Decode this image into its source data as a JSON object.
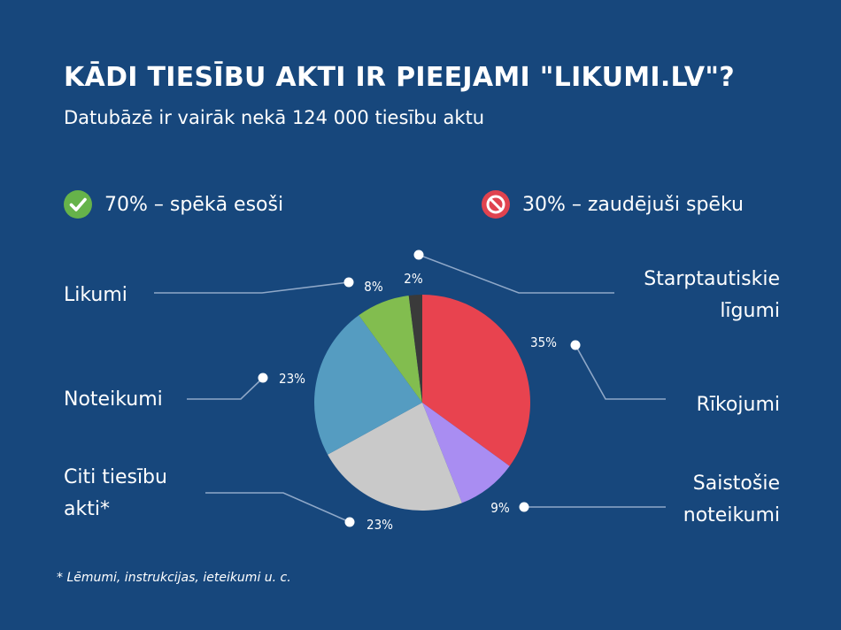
{
  "header": {
    "title": "KĀDI TIESĪBU AKTI IR PIEEJAMI \"LIKUMI.LV\"?",
    "subtitle": "Datubāzē ir vairāk nekā 124 000 tiesību aktu"
  },
  "status": {
    "active": {
      "label": "70% – spēkā esoši",
      "icon": "check-circle-icon",
      "color": "#66b34a"
    },
    "lost": {
      "label": "30% – zaudējuši spēku",
      "icon": "no-entry-icon",
      "color": "#e0434f"
    }
  },
  "footnote": "* Lēmumi, instrukcijas, ieteikumi u. c.",
  "chart_data": {
    "type": "pie",
    "slices": [
      {
        "label": [
          "Rīkojumi"
        ],
        "value": 35,
        "value_label": "35%",
        "color": "#e8434f"
      },
      {
        "label": [
          "Saistošie",
          "noteikumi"
        ],
        "value": 9,
        "value_label": "9%",
        "color": "#a98df2"
      },
      {
        "label": [
          "Citi tiesību",
          "akti*"
        ],
        "value": 23,
        "value_label": "23%",
        "color": "#c9c9c9"
      },
      {
        "label": [
          "Noteikumi"
        ],
        "value": 23,
        "value_label": "23%",
        "color": "#559cc1"
      },
      {
        "label": [
          "Likumi"
        ],
        "value": 8,
        "value_label": "8%",
        "color": "#82bd4f"
      },
      {
        "label": [
          "Starptautiskie",
          "līgumi"
        ],
        "value": 2,
        "value_label": "2%",
        "color": "#3a3a3a"
      }
    ]
  }
}
